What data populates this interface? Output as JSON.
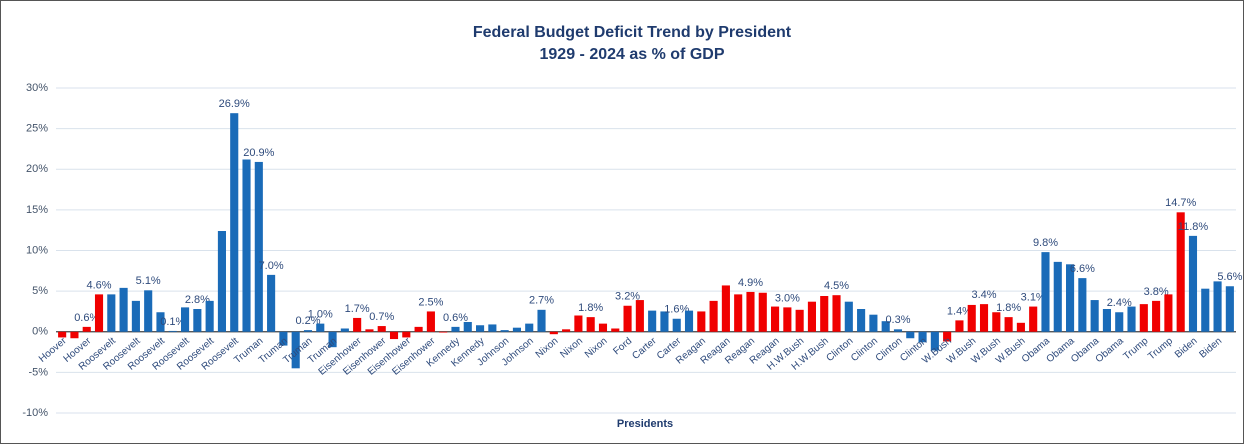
{
  "chart_data": {
    "type": "bar",
    "title": "Federal Budget Deficit Trend by President",
    "subtitle": "1929 - 2024 as % of GDP",
    "x_label": "Presidents",
    "categories": [
      "Hoover",
      null,
      "Hoover",
      null,
      "Roosevelt",
      null,
      "Roosevelt",
      null,
      "Roosevelt",
      null,
      "Roosevelt",
      null,
      "Roosevelt",
      null,
      "Roosevelt",
      null,
      "Truman",
      null,
      "Truman",
      null,
      "Truman",
      null,
      "Truman",
      null,
      "Eisenhower",
      null,
      "Eisenhower",
      null,
      "Eisenhower",
      null,
      "Eisenhower",
      null,
      "Kennedy",
      null,
      "Kennedy",
      null,
      "Johnson",
      null,
      "Johnson",
      null,
      "Nixon",
      null,
      "Nixon",
      null,
      "Nixon",
      null,
      "Ford",
      null,
      "Carter",
      null,
      "Carter",
      null,
      "Reagan",
      null,
      "Reagan",
      null,
      "Reagan",
      null,
      "Reagan",
      null,
      "H.W.Bush",
      null,
      "H.W.Bush",
      null,
      "Clinton",
      null,
      "Clinton",
      null,
      "Clinton",
      null,
      "Clinton",
      null,
      "W.Bush",
      null,
      "W.Bush",
      null,
      "W.Bush",
      null,
      "W.Bush",
      null,
      "Obama",
      null,
      "Obama",
      null,
      "Obama",
      null,
      "Obama",
      null,
      "Trump",
      null,
      "Trump",
      null,
      "Biden",
      null,
      "Biden",
      null
    ],
    "values": [
      -0.7,
      -0.8,
      0.6,
      4.6,
      4.6,
      5.4,
      3.8,
      5.1,
      2.4,
      0.1,
      3.0,
      2.8,
      3.8,
      12.4,
      26.9,
      21.2,
      20.9,
      7.0,
      -1.7,
      -4.5,
      0.2,
      1.0,
      -1.9,
      0.4,
      1.7,
      0.3,
      0.7,
      -0.9,
      -0.7,
      0.6,
      2.5,
      -0.1,
      0.6,
      1.2,
      0.8,
      0.9,
      0.2,
      0.5,
      1.0,
      2.7,
      -0.3,
      0.3,
      2.0,
      1.8,
      1.0,
      0.4,
      3.2,
      3.9,
      2.6,
      2.5,
      1.6,
      2.6,
      2.5,
      3.8,
      5.7,
      4.6,
      4.9,
      4.8,
      3.1,
      3.0,
      2.7,
      3.7,
      4.4,
      4.5,
      3.7,
      2.8,
      2.1,
      1.3,
      0.3,
      -0.8,
      -1.3,
      -2.3,
      -1.2,
      1.4,
      3.3,
      3.4,
      2.4,
      1.8,
      1.1,
      3.1,
      9.8,
      8.6,
      8.3,
      6.6,
      3.9,
      2.8,
      2.4,
      3.1,
      3.4,
      3.8,
      4.6,
      14.7,
      11.8,
      5.3,
      6.2,
      5.6
    ],
    "value_labels": [
      null,
      null,
      "0.6%",
      "4.6%",
      null,
      null,
      null,
      "5.1%",
      null,
      "0.1%",
      null,
      "2.8%",
      null,
      null,
      "26.9%",
      null,
      "20.9%",
      "7.0%",
      null,
      null,
      "0.2%",
      "1.0%",
      null,
      null,
      "1.7%",
      null,
      "0.7%",
      null,
      null,
      null,
      "2.5%",
      null,
      "0.6%",
      null,
      null,
      null,
      null,
      null,
      null,
      "2.7%",
      null,
      null,
      null,
      "1.8%",
      null,
      null,
      "3.2%",
      null,
      null,
      null,
      "1.6%",
      null,
      null,
      null,
      null,
      null,
      "4.9%",
      null,
      null,
      "3.0%",
      null,
      null,
      null,
      "4.5%",
      null,
      null,
      null,
      null,
      "0.3%",
      null,
      null,
      null,
      null,
      "1.4%",
      null,
      "3.4%",
      null,
      "1.8%",
      null,
      "3.1%",
      "9.8%",
      null,
      null,
      "6.6%",
      null,
      null,
      "2.4%",
      null,
      null,
      "3.8%",
      null,
      "14.7%",
      "11.8%",
      null,
      null,
      "5.6%"
    ],
    "colors": [
      "#f00000",
      "#f00000",
      "#f00000",
      "#f00000",
      "#1a6bb8",
      "#1a6bb8",
      "#1a6bb8",
      "#1a6bb8",
      "#1a6bb8",
      "#1a6bb8",
      "#1a6bb8",
      "#1a6bb8",
      "#1a6bb8",
      "#1a6bb8",
      "#1a6bb8",
      "#1a6bb8",
      "#1a6bb8",
      "#1a6bb8",
      "#1a6bb8",
      "#1a6bb8",
      "#1a6bb8",
      "#1a6bb8",
      "#1a6bb8",
      "#1a6bb8",
      "#f00000",
      "#f00000",
      "#f00000",
      "#f00000",
      "#f00000",
      "#f00000",
      "#f00000",
      "#f00000",
      "#1a6bb8",
      "#1a6bb8",
      "#1a6bb8",
      "#1a6bb8",
      "#1a6bb8",
      "#1a6bb8",
      "#1a6bb8",
      "#1a6bb8",
      "#f00000",
      "#f00000",
      "#f00000",
      "#f00000",
      "#f00000",
      "#f00000",
      "#f00000",
      "#f00000",
      "#1a6bb8",
      "#1a6bb8",
      "#1a6bb8",
      "#1a6bb8",
      "#f00000",
      "#f00000",
      "#f00000",
      "#f00000",
      "#f00000",
      "#f00000",
      "#f00000",
      "#f00000",
      "#f00000",
      "#f00000",
      "#f00000",
      "#f00000",
      "#1a6bb8",
      "#1a6bb8",
      "#1a6bb8",
      "#1a6bb8",
      "#1a6bb8",
      "#1a6bb8",
      "#1a6bb8",
      "#1a6bb8",
      "#f00000",
      "#f00000",
      "#f00000",
      "#f00000",
      "#f00000",
      "#f00000",
      "#f00000",
      "#f00000",
      "#1a6bb8",
      "#1a6bb8",
      "#1a6bb8",
      "#1a6bb8",
      "#1a6bb8",
      "#1a6bb8",
      "#1a6bb8",
      "#1a6bb8",
      "#f00000",
      "#f00000",
      "#f00000",
      "#f00000",
      "#1a6bb8",
      "#1a6bb8",
      "#1a6bb8",
      "#1a6bb8"
    ],
    "ylim": [
      -10,
      30
    ],
    "yticks": [
      {
        "value": -10,
        "label": "-10%"
      },
      {
        "value": -5,
        "label": "-5%"
      },
      {
        "value": 0,
        "label": "0%"
      },
      {
        "value": 5,
        "label": "5%"
      },
      {
        "value": 10,
        "label": "10%"
      },
      {
        "value": 15,
        "label": "15%"
      },
      {
        "value": 20,
        "label": "20%"
      },
      {
        "value": 25,
        "label": "25%"
      },
      {
        "value": 30,
        "label": "30%"
      }
    ],
    "grid": true
  }
}
